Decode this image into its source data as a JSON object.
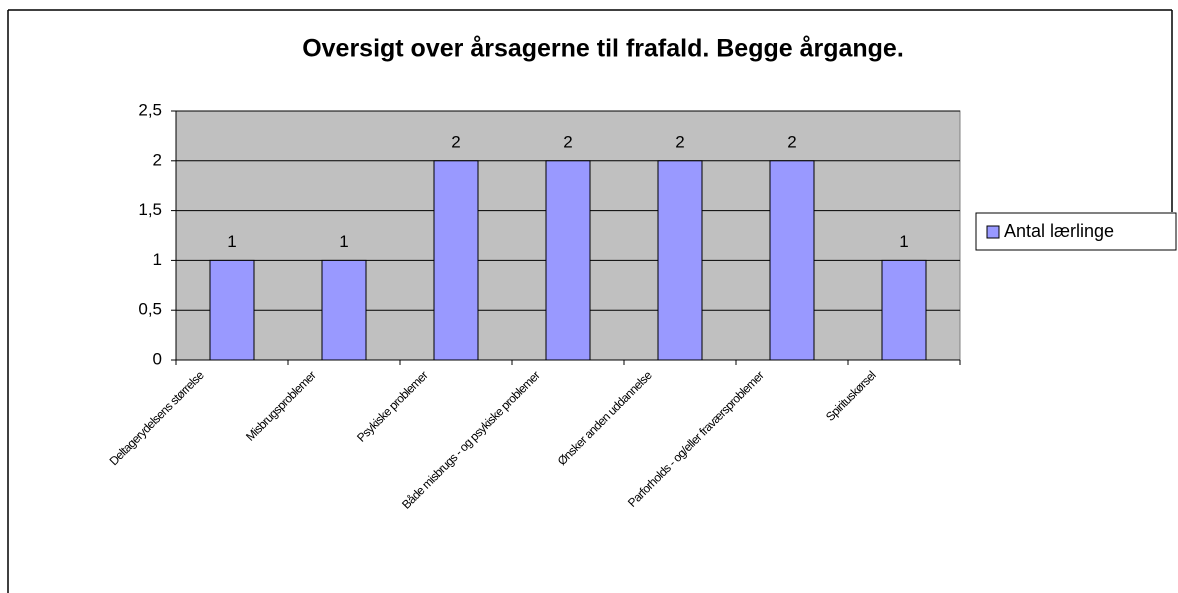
{
  "chart_data": {
    "type": "bar",
    "title": "Oversigt over årsagerne til frafald. Begge årgange.",
    "categories": [
      "Deltagerydelsens størrelse",
      "Misbrugsproblemer",
      "Psykiske problemer",
      "Både misbrugs  - og psykiske problemer",
      "Ønsker anden uddannelse",
      "Parforholds  - og/eller fraværsproblemer",
      "Spirituskørsel"
    ],
    "series": [
      {
        "name": "Antal lærlinge",
        "color": "#9999ff",
        "values": [
          1,
          1,
          2,
          2,
          2,
          2,
          1
        ]
      }
    ],
    "ylim": [
      0,
      2.5
    ],
    "yticks": [
      0,
      {
        "value": 0.5,
        "label": "0,5"
      },
      1,
      {
        "value": 1.5,
        "label": "1,5"
      },
      2,
      {
        "value": 2.5,
        "label": "2,5"
      }
    ],
    "grid": true,
    "legend": "right"
  }
}
